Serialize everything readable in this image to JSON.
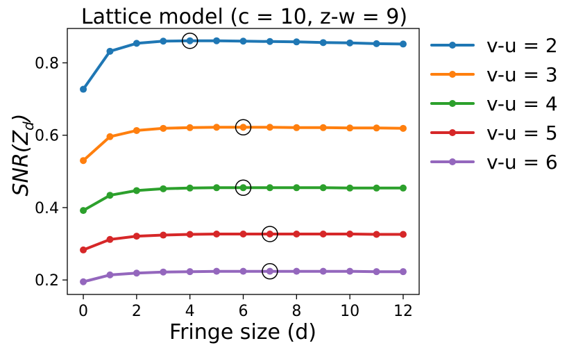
{
  "chart_data": {
    "type": "line",
    "title": "Lattice model (c = 10, z-w = 9)",
    "xlabel": "Fringe size (d)",
    "ylabel": "SNR(Z_d)",
    "ylabel_main": "SNR(Z",
    "ylabel_sub": "d",
    "ylabel_close": ")",
    "xlim": [
      -0.6,
      12.6
    ],
    "ylim": [
      0.16,
      0.895
    ],
    "xticks": [
      0,
      2,
      4,
      6,
      8,
      10,
      12
    ],
    "yticks": [
      0.2,
      0.4,
      0.6,
      0.8
    ],
    "ytick_labels": [
      "0.2",
      "0.4",
      "0.6",
      "0.8"
    ],
    "grid": false,
    "legend_position": "outside-right",
    "x": [
      0,
      1,
      2,
      3,
      4,
      5,
      6,
      7,
      8,
      9,
      10,
      11,
      12
    ],
    "series": [
      {
        "name": "v-u = 2",
        "color": "#1f77b4",
        "values": [
          0.727,
          0.832,
          0.854,
          0.86,
          0.861,
          0.861,
          0.86,
          0.859,
          0.858,
          0.856,
          0.855,
          0.853,
          0.852
        ],
        "marked_max_x": 4
      },
      {
        "name": "v-u = 3",
        "color": "#ff7f0e",
        "values": [
          0.53,
          0.596,
          0.613,
          0.619,
          0.621,
          0.622,
          0.622,
          0.622,
          0.621,
          0.621,
          0.62,
          0.62,
          0.619
        ],
        "marked_max_x": 6
      },
      {
        "name": "v-u = 4",
        "color": "#2ca02c",
        "values": [
          0.392,
          0.434,
          0.447,
          0.452,
          0.454,
          0.455,
          0.455,
          0.455,
          0.455,
          0.455,
          0.454,
          0.454,
          0.454
        ],
        "marked_max_x": 6
      },
      {
        "name": "v-u = 5",
        "color": "#d62728",
        "values": [
          0.283,
          0.312,
          0.321,
          0.324,
          0.326,
          0.327,
          0.327,
          0.327,
          0.327,
          0.327,
          0.327,
          0.326,
          0.326
        ],
        "marked_max_x": 7
      },
      {
        "name": "v-u = 6",
        "color": "#9467bd",
        "values": [
          0.195,
          0.214,
          0.219,
          0.222,
          0.223,
          0.224,
          0.224,
          0.224,
          0.224,
          0.224,
          0.224,
          0.223,
          0.223
        ],
        "marked_max_x": 7
      }
    ]
  }
}
